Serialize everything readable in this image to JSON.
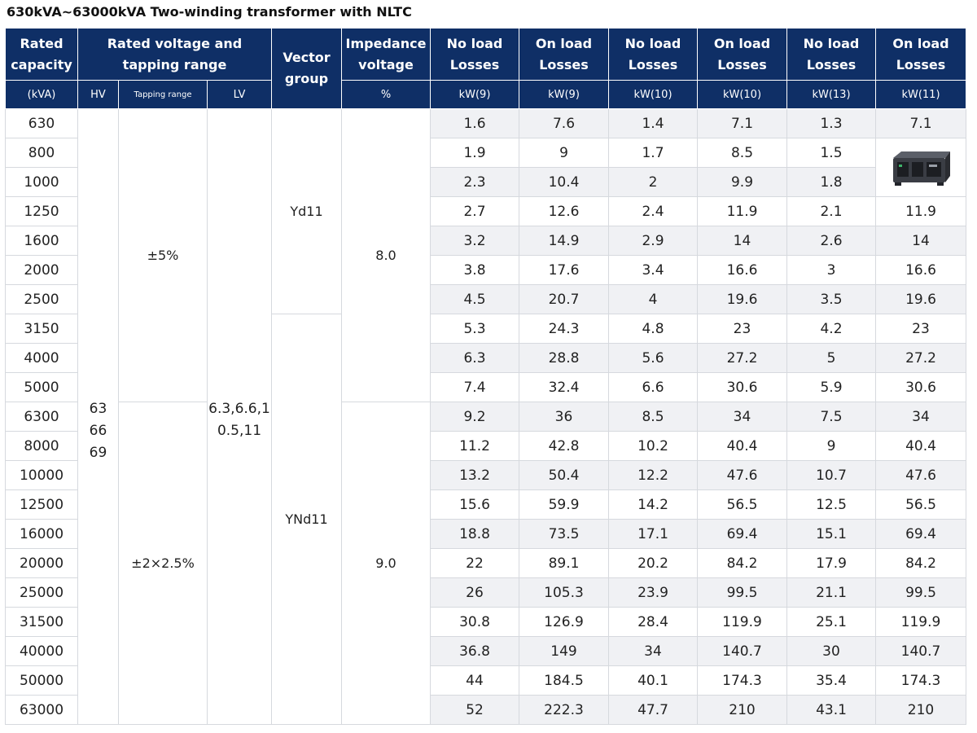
{
  "title": "630kVA~63000kVA Two-winding transformer with NLTC",
  "header": {
    "rated_capacity": "Rated capacity",
    "rated_voltage": "Rated voltage and tapping range",
    "vector_group": "Vector group",
    "impedance": "Impedance voltage",
    "no_load": "No load Losses",
    "on_load": "On load Losses"
  },
  "units": {
    "capacity": "(kVA)",
    "hv": "HV",
    "tapping": "Tapping range",
    "lv": "LV",
    "percent": "%",
    "kw9a": "kW(9)",
    "kw9b": "kW(9)",
    "kw10a": "kW(10)",
    "kw10b": "kW(10)",
    "kw13": "kW(13)",
    "kw11": "kW(11)"
  },
  "merged": {
    "hv": "63\n66\n69",
    "tap_upper": "±5%",
    "tap_lower": "±2×2.5%",
    "lv": "6.3,6.6,1\n0.5,11",
    "vg_upper": "Yd11",
    "vg_lower": "YNd11",
    "imp_upper": "8.0",
    "imp_lower": "9.0"
  },
  "rows": [
    [
      "630",
      "1.6",
      "7.6",
      "1.4",
      "7.1",
      "1.3",
      "7.1"
    ],
    [
      "800",
      "1.9",
      "9",
      "1.7",
      "8.5",
      "1.5",
      ""
    ],
    [
      "1000",
      "2.3",
      "10.4",
      "2",
      "9.9",
      "1.8",
      ""
    ],
    [
      "1250",
      "2.7",
      "12.6",
      "2.4",
      "11.9",
      "2.1",
      "11.9"
    ],
    [
      "1600",
      "3.2",
      "14.9",
      "2.9",
      "14",
      "2.6",
      "14"
    ],
    [
      "2000",
      "3.8",
      "17.6",
      "3.4",
      "16.6",
      "3",
      "16.6"
    ],
    [
      "2500",
      "4.5",
      "20.7",
      "4",
      "19.6",
      "3.5",
      "19.6"
    ],
    [
      "3150",
      "5.3",
      "24.3",
      "4.8",
      "23",
      "4.2",
      "23"
    ],
    [
      "4000",
      "6.3",
      "28.8",
      "5.6",
      "27.2",
      "5",
      "27.2"
    ],
    [
      "5000",
      "7.4",
      "32.4",
      "6.6",
      "30.6",
      "5.9",
      "30.6"
    ],
    [
      "6300",
      "9.2",
      "36",
      "8.5",
      "34",
      "7.5",
      "34"
    ],
    [
      "8000",
      "11.2",
      "42.8",
      "10.2",
      "40.4",
      "9",
      "40.4"
    ],
    [
      "10000",
      "13.2",
      "50.4",
      "12.2",
      "47.6",
      "10.7",
      "47.6"
    ],
    [
      "12500",
      "15.6",
      "59.9",
      "14.2",
      "56.5",
      "12.5",
      "56.5"
    ],
    [
      "16000",
      "18.8",
      "73.5",
      "17.1",
      "69.4",
      "15.1",
      "69.4"
    ],
    [
      "20000",
      "22",
      "89.1",
      "20.2",
      "84.2",
      "17.9",
      "84.2"
    ],
    [
      "25000",
      "26",
      "105.3",
      "23.9",
      "99.5",
      "21.1",
      "99.5"
    ],
    [
      "31500",
      "30.8",
      "126.9",
      "28.4",
      "119.9",
      "25.1",
      "119.9"
    ],
    [
      "40000",
      "36.8",
      "149",
      "34",
      "140.7",
      "30",
      "140.7"
    ],
    [
      "50000",
      "44",
      "184.5",
      "40.1",
      "174.3",
      "35.4",
      "174.3"
    ],
    [
      "63000",
      "52",
      "222.3",
      "47.7",
      "210",
      "43.1",
      "210"
    ]
  ],
  "colors": {
    "header_bg": "#0f2f66",
    "header_text": "#ffffff",
    "row_shade": "#f0f1f4",
    "grid": "#d6d9de"
  },
  "image_icon": "transformer-product-image"
}
